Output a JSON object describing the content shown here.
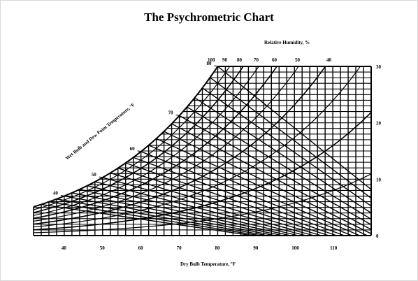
{
  "chart_data": {
    "type": "psychrometric",
    "title": "The Psychrometric Chart",
    "xlabel": "Dry Bulb Temperature, °F",
    "ylabel_right": "",
    "curve_label": "Wet Bulb and Dew Point Temperature, °F",
    "rh_label": "Relative Humidity, %",
    "x_range": [
      32,
      120
    ],
    "y_range": [
      0,
      30
    ],
    "x_ticks": [
      40,
      50,
      60,
      70,
      80,
      90,
      100,
      110
    ],
    "y_ticks": [
      0,
      10,
      20,
      30
    ],
    "saturation_ticks": [
      40,
      50,
      60,
      70,
      80
    ],
    "rh_ticks": [
      "100",
      "90",
      "80",
      "70",
      "60",
      "50",
      "40"
    ],
    "rh_values": [
      100,
      90,
      80,
      70,
      60,
      50,
      40,
      30,
      20,
      10
    ],
    "grid": true
  }
}
